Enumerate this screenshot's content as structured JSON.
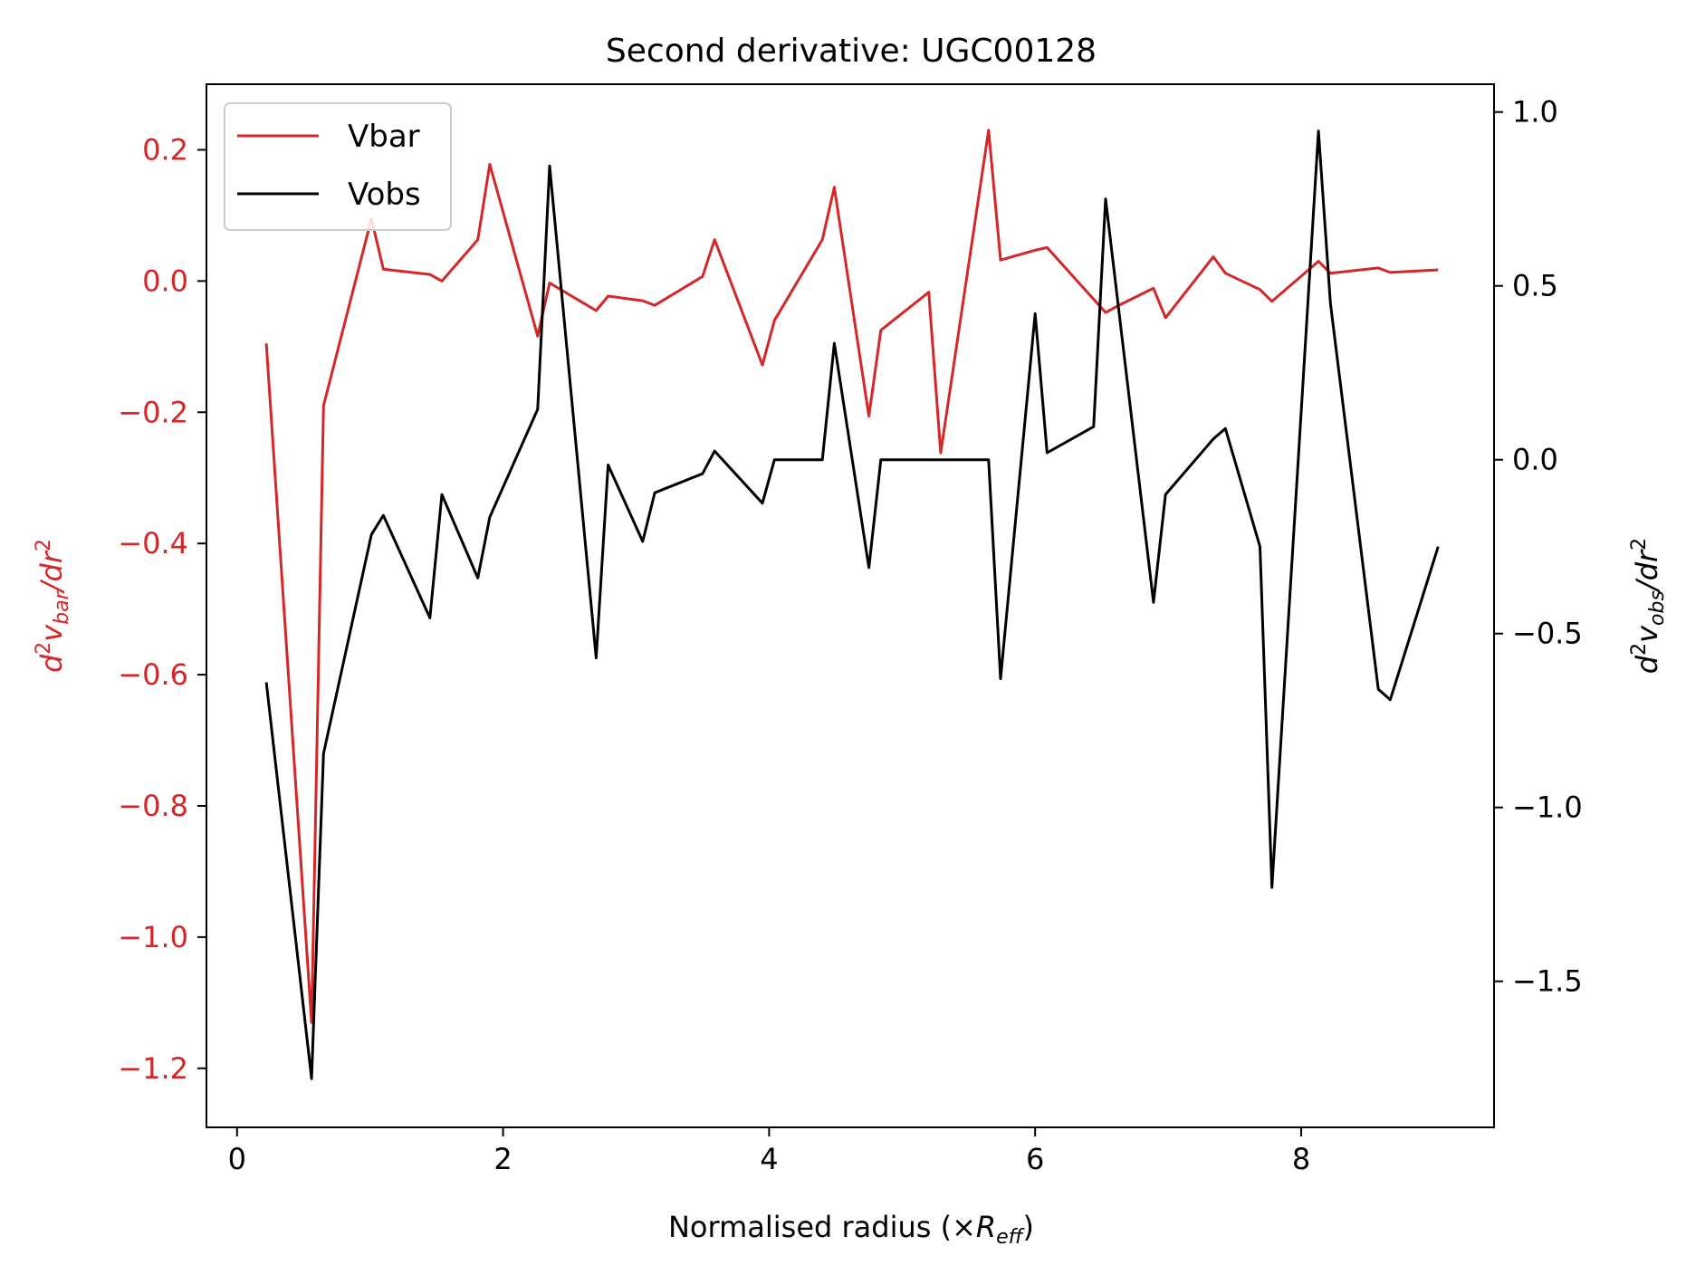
{
  "chart_data": {
    "type": "line",
    "title": "Second derivative: UGC00128",
    "xlabel": {
      "text": "Normalised radius (×",
      "math": "R",
      "sub": "eff",
      "close": ")"
    },
    "ylabel_left": {
      "pre": "d",
      "sup1": "2",
      "v": "v",
      "sub": "bar",
      "mid": "/dr",
      "sup2": "2"
    },
    "ylabel_right": {
      "pre": "d",
      "sup1": "2",
      "v": "v",
      "sub": "obs",
      "mid": "/dr",
      "sup2": "2"
    },
    "xlim": [
      -0.23,
      9.45
    ],
    "ylim_left": [
      -1.29,
      0.3
    ],
    "ylim_right": [
      -1.92,
      1.08
    ],
    "xticks": [
      "0",
      "2",
      "4",
      "6",
      "8"
    ],
    "xtick_values": [
      0,
      2,
      4,
      6,
      8
    ],
    "yticks_left": [
      "0.2",
      "0.0",
      "−0.2",
      "−0.4",
      "−0.6",
      "−0.8",
      "−1.0",
      "−1.2"
    ],
    "ytick_values_left": [
      0.2,
      0.0,
      -0.2,
      -0.4,
      -0.6,
      -0.8,
      -1.0,
      -1.2
    ],
    "yticks_right": [
      "1.0",
      "0.5",
      "0.0",
      "−0.5",
      "−1.0",
      "−1.5"
    ],
    "ytick_values_right": [
      1.0,
      0.5,
      0.0,
      -0.5,
      -1.0,
      -1.5
    ],
    "legend_position": "upper-left",
    "series": [
      {
        "name": "Vbar",
        "axis": "left",
        "color": "#d62728",
        "x": [
          0.22,
          0.56,
          0.65,
          1.01,
          1.1,
          1.45,
          1.54,
          1.81,
          1.9,
          2.26,
          2.35,
          2.7,
          2.79,
          3.05,
          3.14,
          3.5,
          3.59,
          3.95,
          4.04,
          4.4,
          4.49,
          4.75,
          4.84,
          5.2,
          5.29,
          5.65,
          5.74,
          6.0,
          6.09,
          6.53,
          6.62,
          6.89,
          6.98,
          7.34,
          7.43,
          7.69,
          7.78,
          8.13,
          8.22,
          8.58,
          8.67,
          9.03
        ],
        "y": [
          -0.095,
          -1.13,
          -0.19,
          0.095,
          0.018,
          0.01,
          0.0,
          0.063,
          0.178,
          -0.084,
          -0.003,
          -0.045,
          -0.023,
          -0.03,
          -0.037,
          0.007,
          0.063,
          -0.128,
          -0.06,
          0.063,
          0.143,
          -0.206,
          -0.075,
          -0.017,
          -0.262,
          0.23,
          0.032,
          0.047,
          0.051,
          -0.048,
          -0.038,
          -0.011,
          -0.056,
          0.037,
          0.012,
          -0.013,
          -0.031,
          0.03,
          0.012,
          0.02,
          0.013,
          0.017
        ]
      },
      {
        "name": "Vobs",
        "axis": "right",
        "color": "#000000",
        "x": [
          0.22,
          0.56,
          0.65,
          1.01,
          1.1,
          1.45,
          1.54,
          1.81,
          1.9,
          2.26,
          2.35,
          2.7,
          2.79,
          3.05,
          3.14,
          3.5,
          3.59,
          3.95,
          4.04,
          4.4,
          4.49,
          4.75,
          4.84,
          5.2,
          5.29,
          5.65,
          5.74,
          6.0,
          6.09,
          6.44,
          6.53,
          6.89,
          6.98,
          7.34,
          7.43,
          7.69,
          7.78,
          8.13,
          8.22,
          8.58,
          8.67,
          9.03
        ],
        "y": [
          -0.64,
          -1.78,
          -0.845,
          -0.215,
          -0.16,
          -0.455,
          -0.1,
          -0.34,
          -0.165,
          0.145,
          0.845,
          -0.57,
          -0.015,
          -0.235,
          -0.095,
          -0.04,
          0.025,
          -0.125,
          0.0,
          0.0,
          0.335,
          -0.31,
          0.0,
          0.0,
          0.0,
          0.0,
          -0.63,
          0.42,
          0.02,
          0.095,
          0.75,
          -0.41,
          -0.1,
          0.06,
          0.09,
          -0.25,
          -1.23,
          0.945,
          0.45,
          -0.66,
          -0.69,
          -0.25
        ]
      }
    ]
  }
}
